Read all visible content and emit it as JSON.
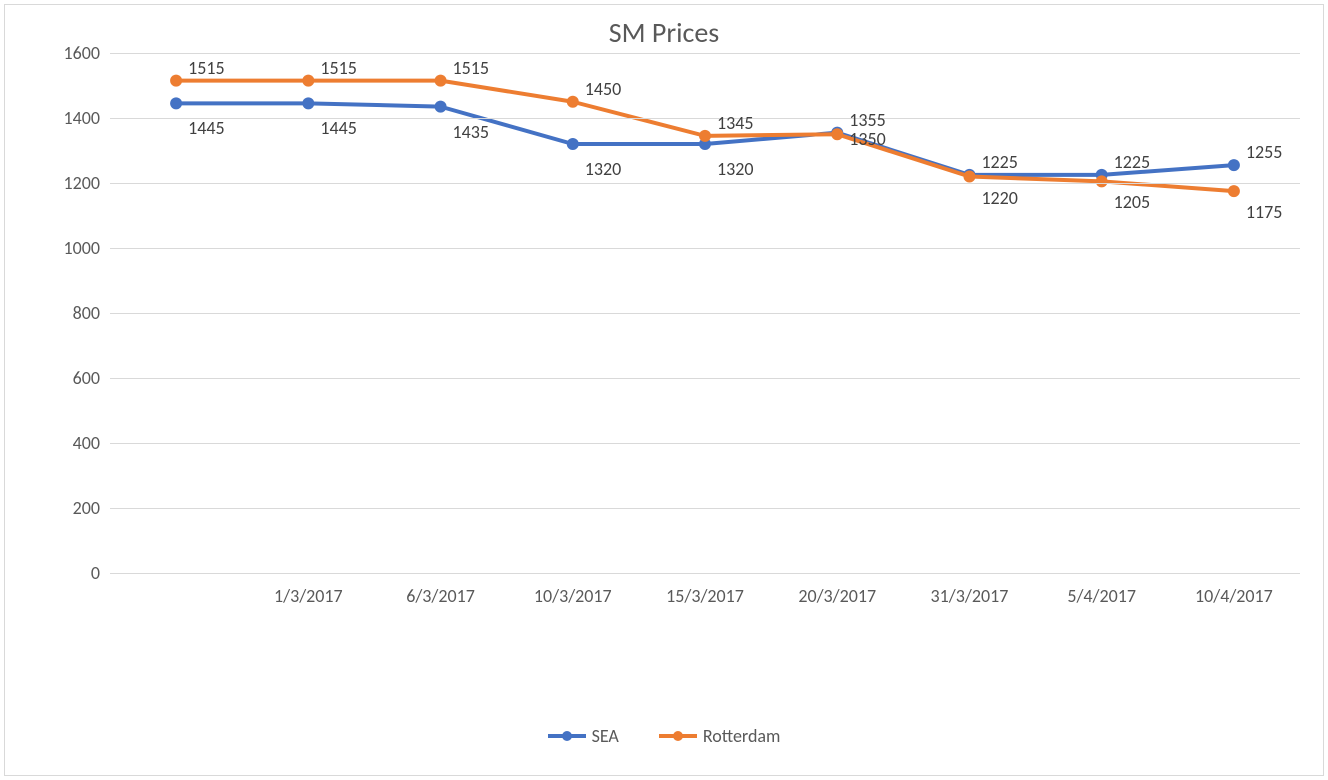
{
  "chart": {
    "type": "line",
    "title": "SM Prices",
    "title_fontsize": 28,
    "title_color": "#595959",
    "background_color": "#ffffff",
    "border_color": "#d9d9d9",
    "grid_color": "#d9d9d9",
    "axis_label_fontsize": 18,
    "axis_label_color": "#595959",
    "data_label_fontsize": 18,
    "data_label_color": "#404040",
    "ylim": [
      0,
      1600
    ],
    "ytick_step": 200,
    "yticks": [
      0,
      200,
      400,
      600,
      800,
      1000,
      1200,
      1400,
      1600
    ],
    "categories": [
      "",
      "1/3/2017",
      "6/3/2017",
      "10/3/2017",
      "15/3/2017",
      "20/3/2017",
      "31/3/2017",
      "5/4/2017",
      "10/4/2017"
    ],
    "line_width": 4,
    "marker_radius": 6,
    "marker_style": "circle",
    "series": [
      {
        "name": "SEA",
        "color": "#4472c4",
        "values": [
          1445,
          1445,
          1435,
          1320,
          1320,
          1355,
          1225,
          1225,
          1255
        ],
        "labels": [
          "1445",
          "1445",
          "1435",
          "1320",
          "1320",
          "1355",
          "1225",
          "1225",
          "1255"
        ],
        "label_dy": [
          14,
          14,
          14,
          14,
          14,
          -24,
          -24,
          -24,
          -24
        ]
      },
      {
        "name": "Rotterdam",
        "color": "#ed7d31",
        "values": [
          1515,
          1515,
          1515,
          1450,
          1345,
          1350,
          1220,
          1205,
          1175
        ],
        "labels": [
          "1515",
          "1515",
          "1515",
          "1450",
          "1345",
          "1350",
          "1220",
          "1205",
          "1175"
        ],
        "label_dy": [
          -24,
          -24,
          -24,
          -24,
          -24,
          -6,
          10,
          10,
          10
        ]
      }
    ],
    "legend_position": "bottom"
  }
}
